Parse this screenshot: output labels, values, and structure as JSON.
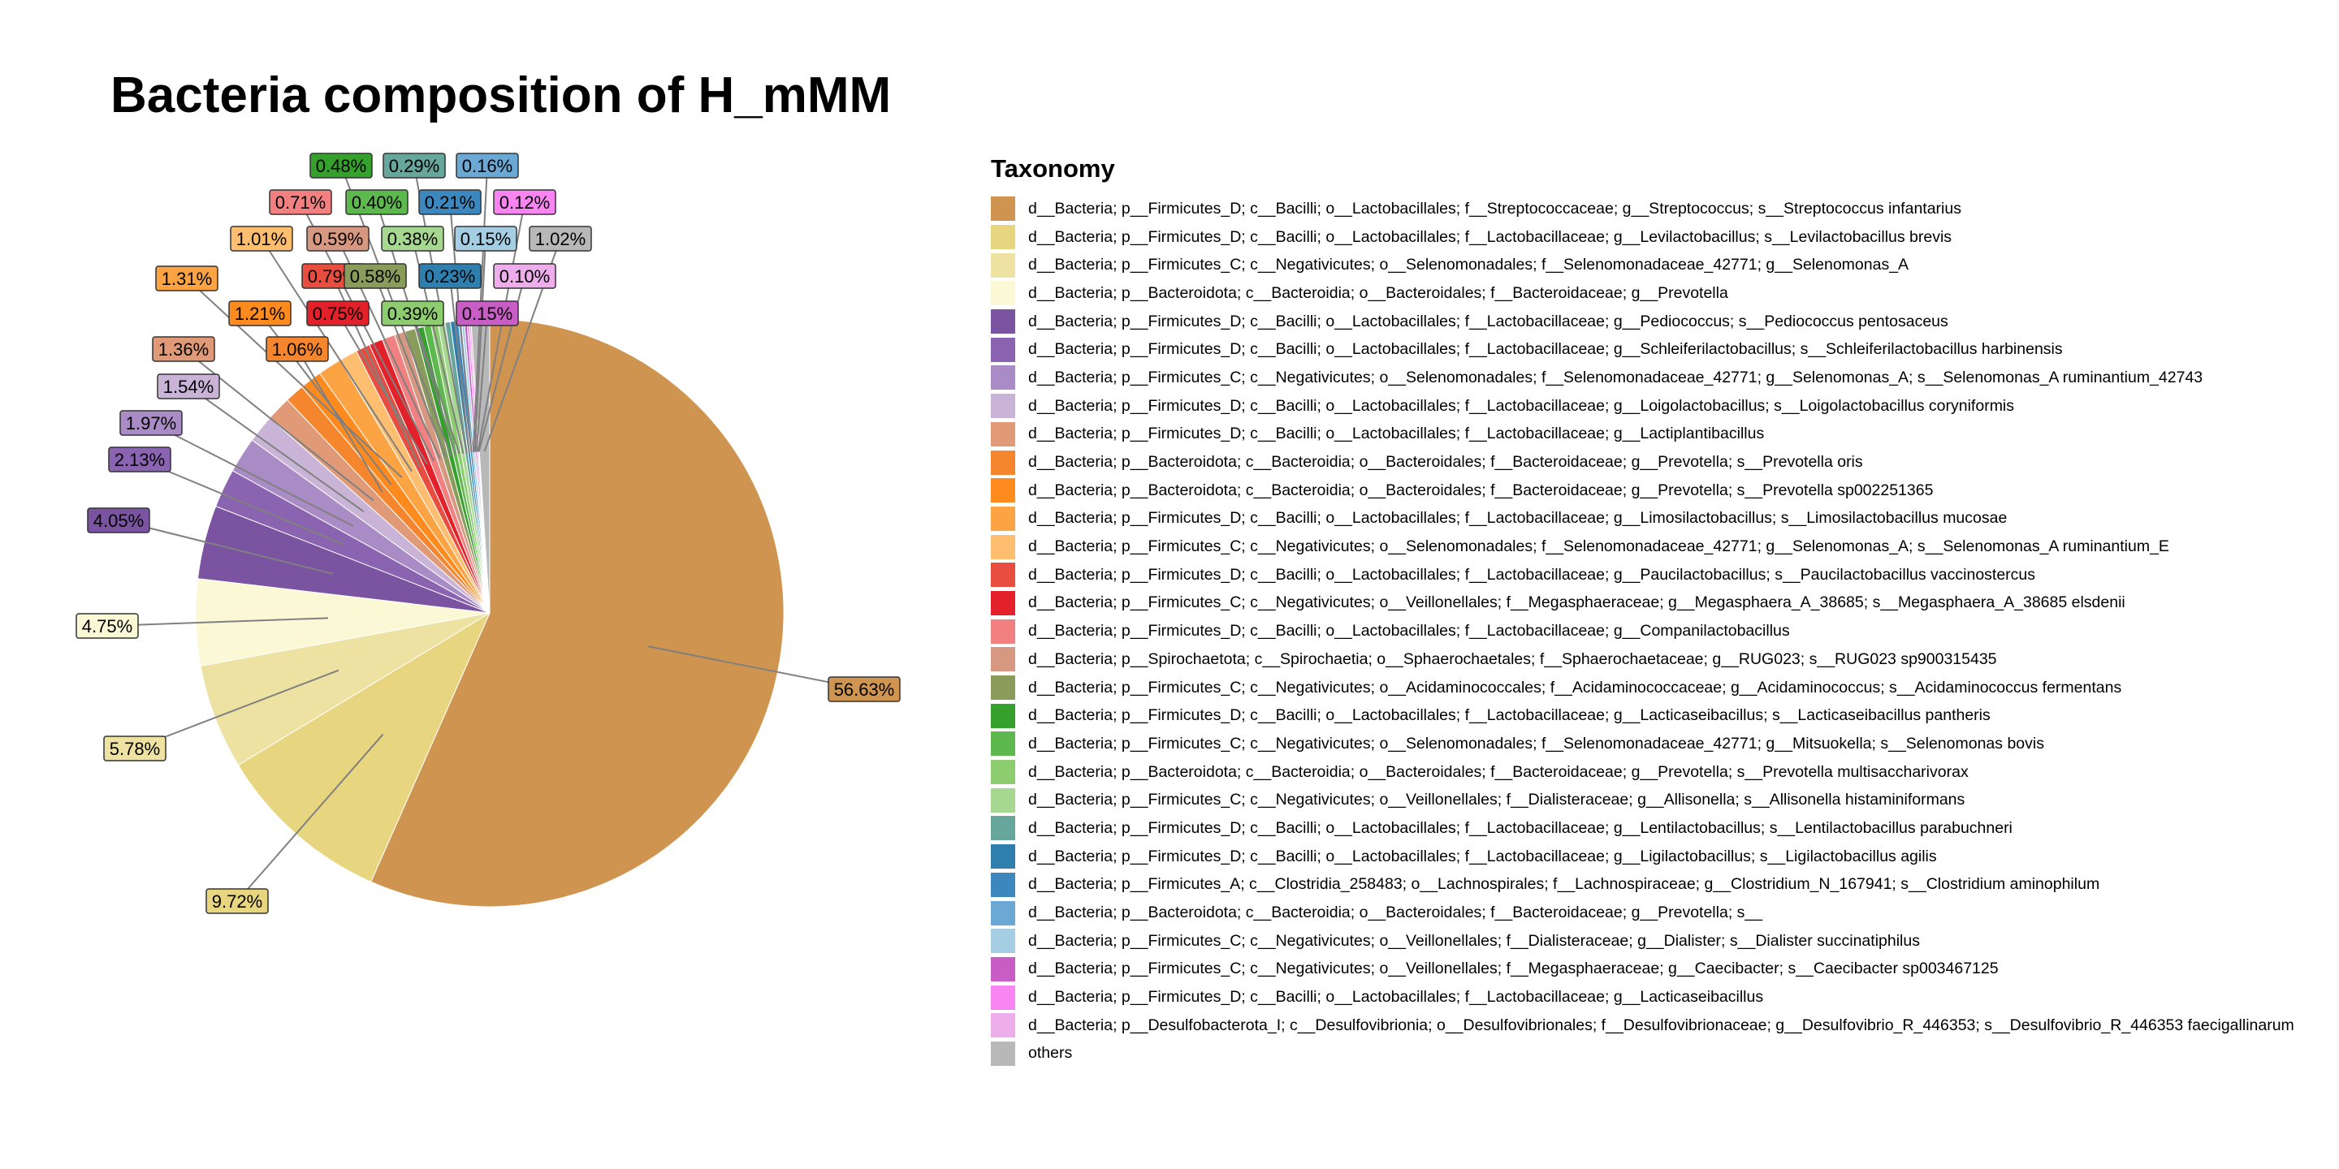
{
  "chart_data": {
    "type": "pie",
    "title": "Bacteria composition of H_mMM",
    "legend_title": "Taxonomy",
    "legend_position": "right",
    "slices": [
      {
        "label": "d__Bacteria; p__Firmicutes_D; c__Bacilli; o__Lactobacillales; f__Streptococcaceae; g__Streptococcus; s__Streptococcus infantarius",
        "value": 56.63,
        "value_label": "56.63%",
        "color": "#CF944F"
      },
      {
        "label": "d__Bacteria; p__Firmicutes_D; c__Bacilli; o__Lactobacillales; f__Lactobacillaceae; g__Levilactobacillus; s__Levilactobacillus brevis",
        "value": 9.72,
        "value_label": "9.72%",
        "color": "#E8D57F"
      },
      {
        "label": "d__Bacteria; p__Firmicutes_C; c__Negativicutes; o__Selenomonadales; f__Selenomonadaceae_42771; g__Selenomonas_A",
        "value": 5.78,
        "value_label": "5.78%",
        "color": "#EDE2A2"
      },
      {
        "label": "d__Bacteria; p__Bacteroidota; c__Bacteroidia; o__Bacteroidales; f__Bacteroidaceae; g__Prevotella",
        "value": 4.75,
        "value_label": "4.75%",
        "color": "#FBF8D5"
      },
      {
        "label": "d__Bacteria; p__Firmicutes_D; c__Bacilli; o__Lactobacillales; f__Lactobacillaceae; g__Pediococcus; s__Pediococcus pentosaceus",
        "value": 4.05,
        "value_label": "4.05%",
        "color": "#7A54A0"
      },
      {
        "label": "d__Bacteria; p__Firmicutes_D; c__Bacilli; o__Lactobacillales; f__Lactobacillaceae; g__Schleiferilactobacillus; s__Schleiferilactobacillus harbinensis",
        "value": 2.13,
        "value_label": "2.13%",
        "color": "#8A64B0"
      },
      {
        "label": "d__Bacteria; p__Firmicutes_C; c__Negativicutes; o__Selenomonadales; f__Selenomonadaceae_42771; g__Selenomonas_A; s__Selenomonas_A ruminantium_42743",
        "value": 1.97,
        "value_label": "1.97%",
        "color": "#A98BC6"
      },
      {
        "label": "d__Bacteria; p__Firmicutes_D; c__Bacilli; o__Lactobacillales; f__Lactobacillaceae; g__Loigolactobacillus; s__Loigolactobacillus coryniformis",
        "value": 1.54,
        "value_label": "1.54%",
        "color": "#C9B4D8"
      },
      {
        "label": "d__Bacteria; p__Firmicutes_D; c__Bacilli; o__Lactobacillales; f__Lactobacillaceae; g__Lactiplantibacillus",
        "value": 1.36,
        "value_label": "1.36%",
        "color": "#E09A78"
      },
      {
        "label": "d__Bacteria; p__Bacteroidota; c__Bacteroidia; o__Bacteroidales; f__Bacteroidaceae; g__Prevotella; s__Prevotella oris",
        "value": 1.06,
        "value_label": "1.06%",
        "color": "#F5862D"
      },
      {
        "label": "d__Bacteria; p__Bacteroidota; c__Bacteroidia; o__Bacteroidales; f__Bacteroidaceae; g__Prevotella; s__Prevotella sp002251365",
        "value": 1.21,
        "value_label": "1.21%",
        "color": "#FF8A1E"
      },
      {
        "label": "d__Bacteria; p__Firmicutes_D; c__Bacilli; o__Lactobacillales; f__Lactobacillaceae; g__Limosilactobacillus; s__Limosilactobacillus mucosae",
        "value": 1.31,
        "value_label": "1.31%",
        "color": "#FCA344"
      },
      {
        "label": "d__Bacteria; p__Firmicutes_C; c__Negativicutes; o__Selenomonadales; f__Selenomonadaceae_42771; g__Selenomonas_A; s__Selenomonas_A ruminantium_E",
        "value": 1.01,
        "value_label": "1.01%",
        "color": "#FDBE6F"
      },
      {
        "label": "d__Bacteria; p__Firmicutes_D; c__Bacilli; o__Lactobacillales; f__Lactobacillaceae; g__Paucilactobacillus; s__Paucilactobacillus vaccinostercus",
        "value": 0.79,
        "value_label": "0.79%",
        "color": "#E84E3F"
      },
      {
        "label": "d__Bacteria; p__Firmicutes_C; c__Negativicutes; o__Veillonellales; f__Megasphaeraceae; g__Megasphaera_A_38685; s__Megasphaera_A_38685 elsdenii",
        "value": 0.75,
        "value_label": "0.75%",
        "color": "#E3212A"
      },
      {
        "label": "d__Bacteria; p__Firmicutes_D; c__Bacilli; o__Lactobacillales; f__Lactobacillaceae; g__Companilactobacillus",
        "value": 0.71,
        "value_label": "0.71%",
        "color": "#F38080"
      },
      {
        "label": "d__Bacteria; p__Spirochaetota; c__Spirochaetia; o__Sphaerochaetales; f__Sphaerochaetaceae; g__RUG023; s__RUG023 sp900315435",
        "value": 0.59,
        "value_label": "0.59%",
        "color": "#D69880"
      },
      {
        "label": "d__Bacteria; p__Firmicutes_C; c__Negativicutes; o__Acidaminococcales; f__Acidaminococcaceae; g__Acidaminococcus; s__Acidaminococcus fermentans",
        "value": 0.58,
        "value_label": "0.58%",
        "color": "#8A9C5B"
      },
      {
        "label": "d__Bacteria; p__Firmicutes_D; c__Bacilli; o__Lactobacillales; f__Lactobacillaceae; g__Lacticaseibacillus; s__Lacticaseibacillus pantheris",
        "value": 0.48,
        "value_label": "0.48%",
        "color": "#36A02D"
      },
      {
        "label": "d__Bacteria; p__Firmicutes_C; c__Negativicutes; o__Selenomonadales; f__Selenomonadaceae_42771; g__Mitsuokella; s__Selenomonas bovis",
        "value": 0.4,
        "value_label": "0.40%",
        "color": "#5DB84E"
      },
      {
        "label": "d__Bacteria; p__Bacteroidota; c__Bacteroidia; o__Bacteroidales; f__Bacteroidaceae; g__Prevotella; s__Prevotella multisaccharivorax",
        "value": 0.39,
        "value_label": "0.39%",
        "color": "#8DCC6F"
      },
      {
        "label": "d__Bacteria; p__Firmicutes_C; c__Negativicutes; o__Veillonellales; f__Dialisteraceae; g__Allisonella; s__Allisonella histaminiformans",
        "value": 0.38,
        "value_label": "0.38%",
        "color": "#A6D891"
      },
      {
        "label": "d__Bacteria; p__Firmicutes_D; c__Bacilli; o__Lactobacillales; f__Lactobacillaceae; g__Lentilactobacillus; s__Lentilactobacillus parabuchneri",
        "value": 0.29,
        "value_label": "0.29%",
        "color": "#67A69C"
      },
      {
        "label": "d__Bacteria; p__Firmicutes_D; c__Bacilli; o__Lactobacillales; f__Lactobacillaceae; g__Ligilactobacillus; s__Ligilactobacillus agilis",
        "value": 0.23,
        "value_label": "0.23%",
        "color": "#2F7FAE"
      },
      {
        "label": "d__Bacteria; p__Firmicutes_A; c__Clostridia_258483; o__Lachnospirales; f__Lachnospiraceae; g__Clostridium_N_167941; s__Clostridium aminophilum",
        "value": 0.21,
        "value_label": "0.21%",
        "color": "#3C88BE"
      },
      {
        "label": "d__Bacteria; p__Bacteroidota; c__Bacteroidia; o__Bacteroidales; f__Bacteroidaceae; g__Prevotella; s__",
        "value": 0.16,
        "value_label": "0.16%",
        "color": "#6BA8D4"
      },
      {
        "label": "d__Bacteria; p__Firmicutes_C; c__Negativicutes; o__Veillonellales; f__Dialisteraceae; g__Dialister; s__Dialister succinatiphilus",
        "value": 0.15,
        "value_label": "0.15%",
        "color": "#A6CEE3"
      },
      {
        "label": "d__Bacteria; p__Firmicutes_C; c__Negativicutes; o__Veillonellales; f__Megasphaeraceae; g__Caecibacter; s__Caecibacter sp003467125",
        "value": 0.15,
        "value_label": "0.15%",
        "color": "#C85EC5"
      },
      {
        "label": "d__Bacteria; p__Firmicutes_D; c__Bacilli; o__Lactobacillales; f__Lactobacillaceae; g__Lacticaseibacillus",
        "value": 0.12,
        "value_label": "0.12%",
        "color": "#F985F2"
      },
      {
        "label": "d__Bacteria; p__Desulfobacterota_I; c__Desulfovibrionia; o__Desulfovibrionales; f__Desulfovibrionaceae; g__Desulfovibrio_R_446353; s__Desulfovibrio_R_446353 faecigallinarum",
        "value": 0.1,
        "value_label": "0.10%",
        "color": "#EDAEEB"
      },
      {
        "label": "others",
        "value": 1.02,
        "value_label": "1.02%",
        "color": "#B8B8B8"
      }
    ]
  }
}
